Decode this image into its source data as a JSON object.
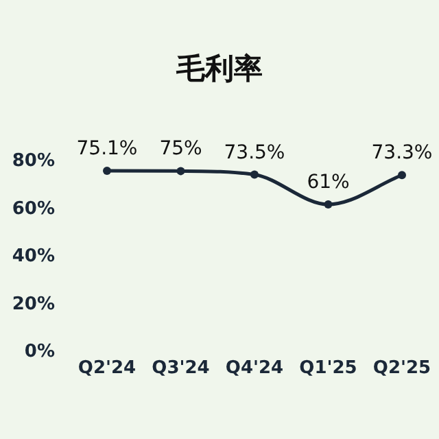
{
  "chart_data": {
    "type": "line",
    "title": "毛利率",
    "categories": [
      "Q2'24",
      "Q3'24",
      "Q4'24",
      "Q1'25",
      "Q2'25"
    ],
    "values": [
      75.1,
      75,
      73.5,
      61,
      73.3
    ],
    "color": "#1b2838",
    "ylim": [
      0,
      80
    ],
    "yticks": [
      {
        "value": 0,
        "label": "0%"
      },
      {
        "value": 20,
        "label": "20%"
      },
      {
        "value": 40,
        "label": "40%"
      },
      {
        "value": 60,
        "label": "60%"
      },
      {
        "value": 80,
        "label": "80%"
      }
    ],
    "value_labels": [
      "75.1%",
      "75%",
      "73.5%",
      "61%",
      "73.3%"
    ],
    "marker": "circle"
  }
}
